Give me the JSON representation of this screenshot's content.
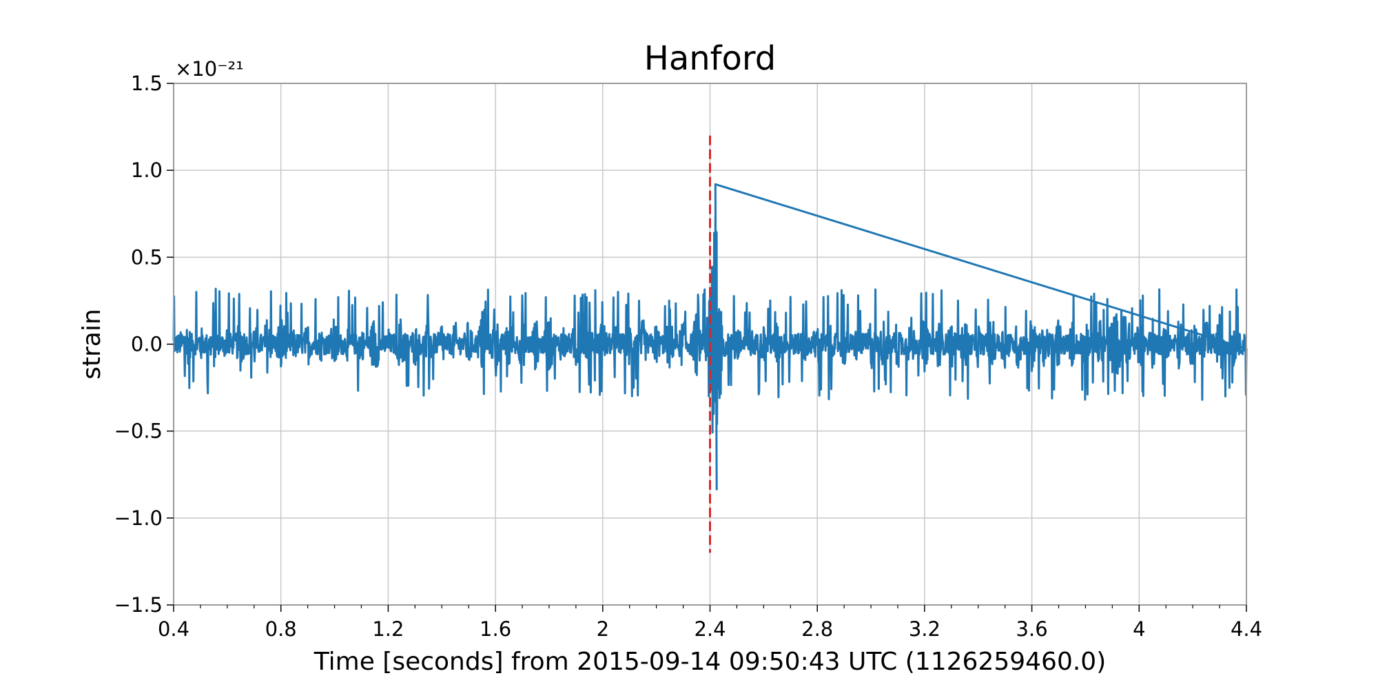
{
  "chart_data": {
    "type": "line",
    "title": "Hanford",
    "xlabel": "Time [seconds] from 2015-09-14 09:50:43 UTC (1126259460.0)",
    "ylabel": "strain",
    "y_offset_label": "×10⁻²¹",
    "y_scale_exponent": -21,
    "xlim": [
      0.4,
      4.4
    ],
    "ylim": [
      -1.5,
      1.5
    ],
    "grid": true,
    "x_ticks": [
      0.4,
      0.8,
      1.2,
      1.6,
      2,
      2.4,
      2.8,
      3.2,
      3.6,
      4,
      4.4
    ],
    "x_tick_labels": [
      "0.4",
      "0.8",
      "1.2",
      "1.6",
      "2",
      "2.4",
      "2.8",
      "3.2",
      "3.6",
      "4",
      "4.4"
    ],
    "y_ticks": [
      -1.5,
      -1.0,
      -0.5,
      0.0,
      0.5,
      1.0,
      1.5
    ],
    "y_tick_labels": [
      "−1.5",
      "−1.0",
      "−0.5",
      "0.0",
      "0.5",
      "1.0",
      "1.5"
    ],
    "series": [
      {
        "color": "#1f77b4",
        "description": "strain noise, typical envelope ±0.3, peaks near 2.42",
        "points": [
          [
            0.4,
            0.0
          ],
          [
            0.45,
            0.25
          ],
          [
            0.5,
            -0.22
          ],
          [
            0.55,
            0.26
          ],
          [
            0.6,
            -0.25
          ],
          [
            0.65,
            0.3
          ],
          [
            0.7,
            -0.27
          ],
          [
            0.75,
            0.31
          ],
          [
            0.8,
            -0.35
          ],
          [
            0.85,
            0.2
          ],
          [
            0.9,
            -0.24
          ],
          [
            0.95,
            0.2
          ],
          [
            1.0,
            -0.3
          ],
          [
            1.05,
            0.2
          ],
          [
            1.1,
            -0.22
          ],
          [
            1.15,
            0.34
          ],
          [
            1.2,
            -0.18
          ],
          [
            1.25,
            0.33
          ],
          [
            1.3,
            -0.25
          ],
          [
            1.35,
            0.3
          ],
          [
            1.4,
            -0.28
          ],
          [
            1.45,
            0.25
          ],
          [
            1.5,
            -0.28
          ],
          [
            1.55,
            0.33
          ],
          [
            1.6,
            -0.35
          ],
          [
            1.65,
            0.3
          ],
          [
            1.7,
            -0.3
          ],
          [
            1.75,
            0.3
          ],
          [
            1.8,
            -0.35
          ],
          [
            1.85,
            0.25
          ],
          [
            1.9,
            -0.28
          ],
          [
            1.95,
            0.3
          ],
          [
            2.0,
            -0.3
          ],
          [
            2.05,
            0.26
          ],
          [
            2.1,
            -0.27
          ],
          [
            2.15,
            0.28
          ],
          [
            2.2,
            -0.25
          ],
          [
            2.25,
            0.3
          ],
          [
            2.3,
            -0.3
          ],
          [
            2.35,
            0.36
          ],
          [
            2.4,
            -0.45
          ],
          [
            2.41,
            0.73
          ],
          [
            2.415,
            -0.8
          ],
          [
            2.42,
            0.92
          ],
          [
            2.425,
            -0.84
          ],
          [
            2.43,
            0.47
          ],
          [
            2.435,
            -0.48
          ],
          [
            2.44,
            0.4
          ],
          [
            2.45,
            -0.2
          ],
          [
            2.5,
            0.25
          ],
          [
            2.55,
            -0.22
          ],
          [
            2.6,
            0.22
          ],
          [
            2.65,
            -0.25
          ],
          [
            2.7,
            0.22
          ],
          [
            2.75,
            -0.25
          ],
          [
            2.8,
            0.28
          ],
          [
            2.85,
            -0.2
          ],
          [
            2.9,
            0.26
          ],
          [
            2.95,
            -0.25
          ],
          [
            3.0,
            0.3
          ],
          [
            3.05,
            -0.3
          ],
          [
            3.1,
            0.3
          ],
          [
            3.15,
            -0.3
          ],
          [
            3.2,
            0.3
          ],
          [
            3.25,
            -0.3
          ],
          [
            3.3,
            0.28
          ],
          [
            3.35,
            -0.3
          ],
          [
            3.4,
            0.26
          ],
          [
            3.45,
            -0.32
          ],
          [
            3.5,
            0.3
          ],
          [
            3.55,
            -0.3
          ],
          [
            3.6,
            0.33
          ],
          [
            3.65,
            -0.3
          ],
          [
            3.7,
            0.3
          ],
          [
            3.75,
            -0.25
          ],
          [
            3.8,
            0.33
          ],
          [
            3.85,
            -0.32
          ],
          [
            3.9,
            0.3
          ],
          [
            3.95,
            0.42
          ],
          [
            4.0,
            -0.33
          ],
          [
            4.05,
            0.28
          ],
          [
            4.1,
            -0.27
          ],
          [
            4.15,
            0.3
          ],
          [
            4.2,
            -0.3
          ],
          [
            4.25,
            0.27
          ],
          [
            4.3,
            -0.32
          ],
          [
            4.35,
            0.26
          ],
          [
            4.4,
            -0.15
          ]
        ]
      }
    ],
    "annotations": [
      {
        "type": "vertical-dashed-line",
        "x": 2.4,
        "y_range": [
          -1.2,
          1.2
        ],
        "color": "#d62728"
      }
    ]
  }
}
